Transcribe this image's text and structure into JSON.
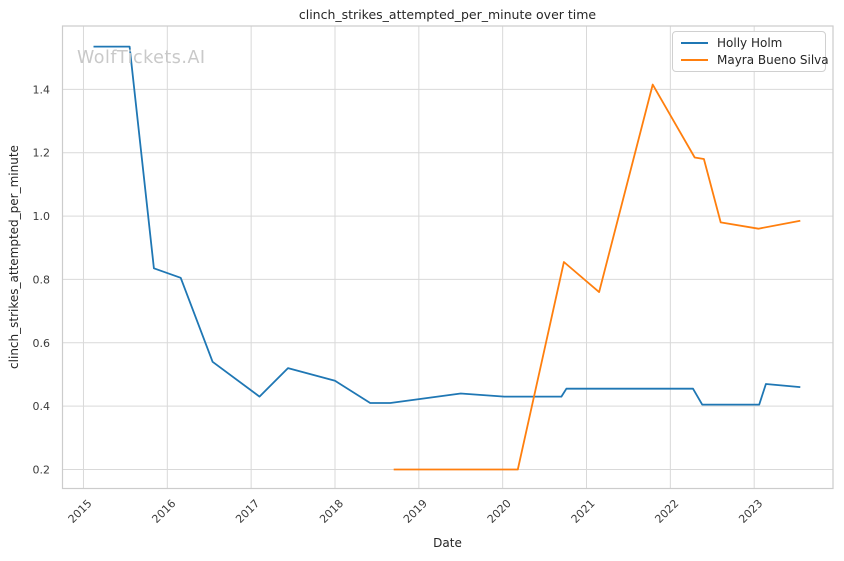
{
  "chart": {
    "title": "clinch_strikes_attempted_per_minute over time",
    "xlabel": "Date",
    "ylabel": "clinch_strikes_attempted_per_minute",
    "watermark": "WolfTickets.AI"
  },
  "chart_data": {
    "type": "line",
    "title": "clinch_strikes_attempted_per_minute over time",
    "xlabel": "Date",
    "ylabel": "clinch_strikes_attempted_per_minute",
    "xlim": [
      2014.75,
      2023.94
    ],
    "ylim": [
      0.14,
      1.6
    ],
    "x_ticks": [
      2015,
      2016,
      2017,
      2018,
      2019,
      2020,
      2021,
      2022,
      2023
    ],
    "y_ticks": [
      0.2,
      0.4,
      0.6,
      0.8,
      1.0,
      1.2,
      1.4
    ],
    "grid": true,
    "legend_position": "upper right",
    "series": [
      {
        "name": "Holly Holm",
        "color": "#1f77b4",
        "points": [
          [
            2015.12,
            1.535
          ],
          [
            2015.55,
            1.535
          ],
          [
            2015.84,
            0.835
          ],
          [
            2016.16,
            0.805
          ],
          [
            2016.54,
            0.54
          ],
          [
            2017.1,
            0.43
          ],
          [
            2017.44,
            0.52
          ],
          [
            2018.0,
            0.48
          ],
          [
            2018.42,
            0.41
          ],
          [
            2018.66,
            0.41
          ],
          [
            2019.5,
            0.44
          ],
          [
            2020.02,
            0.43
          ],
          [
            2020.7,
            0.43
          ],
          [
            2020.76,
            0.455
          ],
          [
            2022.27,
            0.455
          ],
          [
            2022.38,
            0.405
          ],
          [
            2023.06,
            0.405
          ],
          [
            2023.14,
            0.47
          ],
          [
            2023.55,
            0.46
          ]
        ]
      },
      {
        "name": "Mayra Bueno Silva",
        "color": "#ff7f0e",
        "points": [
          [
            2018.7,
            0.2
          ],
          [
            2019.7,
            0.2
          ],
          [
            2020.18,
            0.2
          ],
          [
            2020.73,
            0.855
          ],
          [
            2021.15,
            0.76
          ],
          [
            2021.79,
            1.415
          ],
          [
            2022.29,
            1.185
          ],
          [
            2022.4,
            1.18
          ],
          [
            2022.6,
            0.98
          ],
          [
            2023.05,
            0.96
          ],
          [
            2023.55,
            0.985
          ]
        ]
      }
    ]
  },
  "style": {
    "grid_color": "#d9d9d9",
    "spine_color": "#cccccc",
    "tick_label_color": "#3b3b3b",
    "watermark_color": "#c9c9c9",
    "background_color": "#ffffff"
  }
}
